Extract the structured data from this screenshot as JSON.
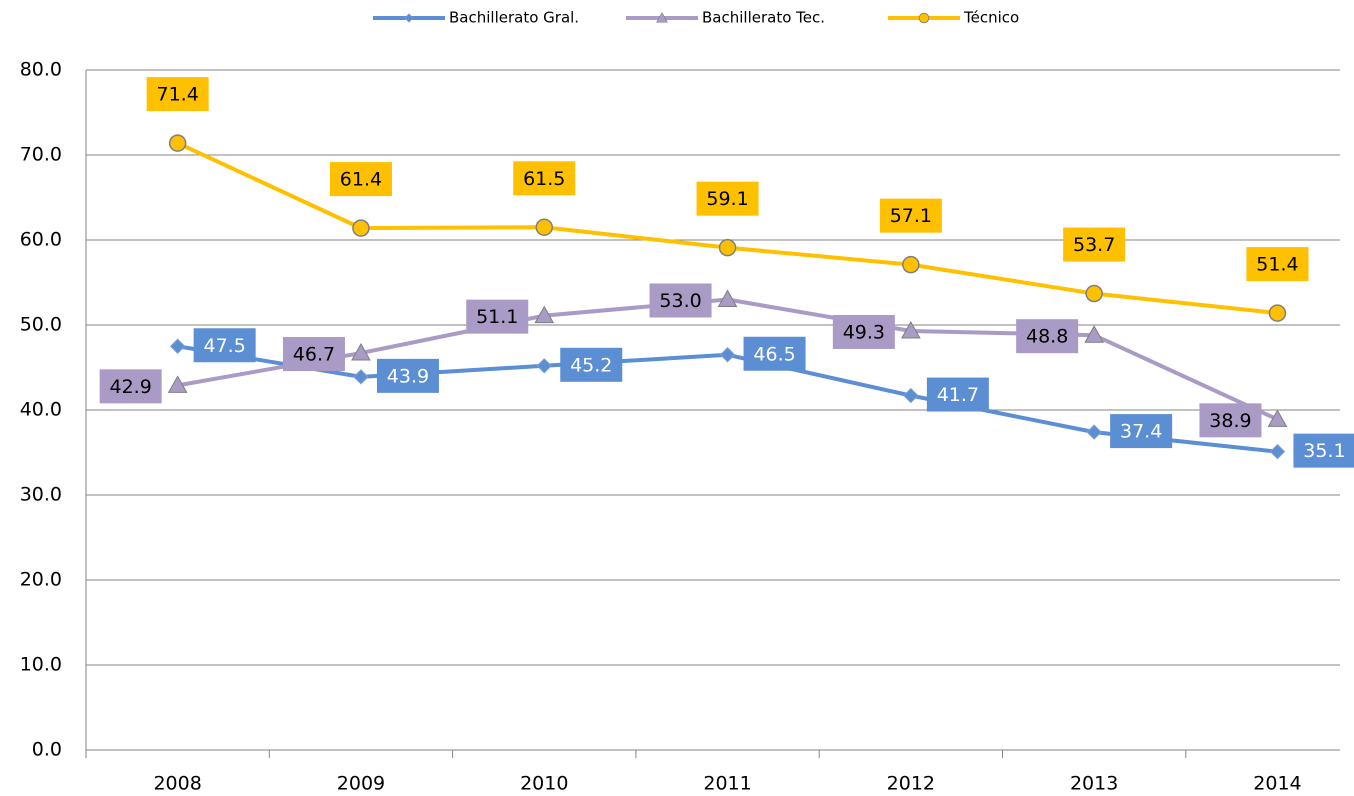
{
  "chart_data": {
    "type": "line",
    "categories": [
      "2008",
      "2009",
      "2010",
      "2011",
      "2012",
      "2013",
      "2014"
    ],
    "series": [
      {
        "name": "Bachillerato Gral.",
        "color": "#5b8ed3",
        "values": [
          47.5,
          43.9,
          45.2,
          46.5,
          41.7,
          37.4,
          35.1
        ],
        "value_labels": [
          "47.5",
          "43.9",
          "45.2",
          "46.5",
          "41.7",
          "37.4",
          "35.1"
        ]
      },
      {
        "name": "Bachillerato Tec.",
        "color": "#a99bc6",
        "values": [
          42.9,
          46.7,
          51.1,
          53.0,
          49.3,
          48.8,
          38.9
        ],
        "value_labels": [
          "42.9",
          "46.7",
          "51.1",
          "53.0",
          "49.3",
          "48.8",
          "38.9"
        ]
      },
      {
        "name": "Técnico",
        "color": "#ffc000",
        "values": [
          71.4,
          61.4,
          61.5,
          59.1,
          57.1,
          53.7,
          51.4
        ],
        "value_labels": [
          "71.4",
          "61.4",
          "61.5",
          "59.1",
          "57.1",
          "53.7",
          "51.4"
        ]
      }
    ],
    "ylim": [
      0,
      80
    ],
    "yticks": [
      {
        "value": 0,
        "label": "0.0"
      },
      {
        "value": 10,
        "label": "10.0"
      },
      {
        "value": 20,
        "label": "20.0"
      },
      {
        "value": 30,
        "label": "30.0"
      },
      {
        "value": 40,
        "label": "40.0"
      },
      {
        "value": 50,
        "label": "50.0"
      },
      {
        "value": 60,
        "label": "60.0"
      },
      {
        "value": 70,
        "label": "70.0"
      },
      {
        "value": 80,
        "label": "80.0"
      }
    ],
    "grid": true,
    "legend": "top"
  }
}
